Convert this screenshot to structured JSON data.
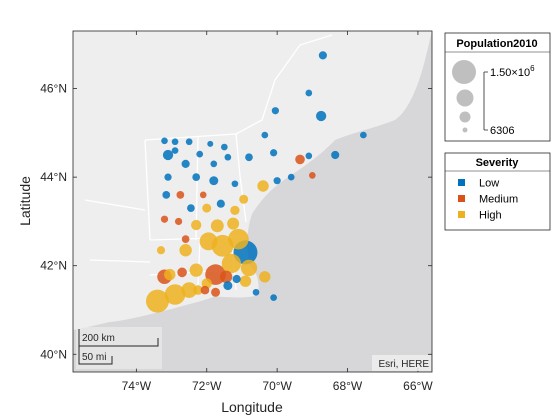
{
  "chart_data": {
    "type": "scatter",
    "map": {
      "basemap_attribution": "Esri, HERE",
      "lon_range": [
        -75.8,
        -65.6
      ],
      "lat_range": [
        39.6,
        47.3
      ],
      "scalebar": {
        "km_label": "200 km",
        "mi_label": "50 mi"
      }
    },
    "xlabel": "Longitude",
    "ylabel": "Latitude",
    "xticks": [
      {
        "value": -74,
        "label": "74°W"
      },
      {
        "value": -72,
        "label": "72°W"
      },
      {
        "value": -70,
        "label": "70°W"
      },
      {
        "value": -68,
        "label": "68°W"
      },
      {
        "value": -66,
        "label": "66°W"
      }
    ],
    "yticks": [
      {
        "value": 40,
        "label": "40°N"
      },
      {
        "value": 42,
        "label": "42°N"
      },
      {
        "value": 44,
        "label": "44°N"
      },
      {
        "value": 46,
        "label": "46°N"
      }
    ],
    "size_legend": {
      "title": "Population2010",
      "max_label": "1.50×10",
      "max_exponent": "6",
      "min_label": "6306"
    },
    "color_legend": {
      "title": "Severity",
      "entries": [
        {
          "name": "Low",
          "color": "#0072BD"
        },
        {
          "name": "Medium",
          "color": "#D95319"
        },
        {
          "name": "High",
          "color": "#EDB120"
        }
      ]
    },
    "points": [
      {
        "lon": -68.7,
        "lat": 46.75,
        "size": 30000,
        "severity": "Low"
      },
      {
        "lon": -69.1,
        "lat": 45.9,
        "size": 15000,
        "severity": "Low"
      },
      {
        "lon": -70.05,
        "lat": 45.5,
        "size": 20000,
        "severity": "Low"
      },
      {
        "lon": -68.75,
        "lat": 45.38,
        "size": 60000,
        "severity": "Low"
      },
      {
        "lon": -70.35,
        "lat": 44.95,
        "size": 15000,
        "severity": "Low"
      },
      {
        "lon": -67.55,
        "lat": 44.95,
        "size": 15000,
        "severity": "Low"
      },
      {
        "lon": -69.35,
        "lat": 44.4,
        "size": 50000,
        "severity": "Medium"
      },
      {
        "lon": -70.1,
        "lat": 44.55,
        "size": 20000,
        "severity": "Low"
      },
      {
        "lon": -68.35,
        "lat": 44.5,
        "size": 30000,
        "severity": "Low"
      },
      {
        "lon": -69.1,
        "lat": 44.48,
        "size": 15000,
        "severity": "Low"
      },
      {
        "lon": -69.0,
        "lat": 44.04,
        "size": 15000,
        "severity": "Medium"
      },
      {
        "lon": -69.6,
        "lat": 44.0,
        "size": 15000,
        "severity": "Low"
      },
      {
        "lon": -70.0,
        "lat": 43.92,
        "size": 20000,
        "severity": "Low"
      },
      {
        "lon": -70.4,
        "lat": 43.8,
        "size": 80000,
        "severity": "High"
      },
      {
        "lon": -70.8,
        "lat": 44.45,
        "size": 25000,
        "severity": "Low"
      },
      {
        "lon": -71.5,
        "lat": 44.68,
        "size": 15000,
        "severity": "Low"
      },
      {
        "lon": -71.9,
        "lat": 44.75,
        "size": 10000,
        "severity": "Low"
      },
      {
        "lon": -72.5,
        "lat": 44.8,
        "size": 15000,
        "severity": "Low"
      },
      {
        "lon": -72.9,
        "lat": 44.8,
        "size": 15000,
        "severity": "Low"
      },
      {
        "lon": -73.2,
        "lat": 44.82,
        "size": 15000,
        "severity": "Low"
      },
      {
        "lon": -72.9,
        "lat": 44.6,
        "size": 15000,
        "severity": "Low"
      },
      {
        "lon": -72.2,
        "lat": 44.52,
        "size": 15000,
        "severity": "Low"
      },
      {
        "lon": -73.1,
        "lat": 44.5,
        "size": 60000,
        "severity": "Low"
      },
      {
        "lon": -71.4,
        "lat": 44.45,
        "size": 15000,
        "severity": "Low"
      },
      {
        "lon": -72.6,
        "lat": 44.3,
        "size": 30000,
        "severity": "Low"
      },
      {
        "lon": -71.8,
        "lat": 44.3,
        "size": 15000,
        "severity": "Low"
      },
      {
        "lon": -73.1,
        "lat": 44.0,
        "size": 20000,
        "severity": "Low"
      },
      {
        "lon": -72.3,
        "lat": 44.0,
        "size": 25000,
        "severity": "Low"
      },
      {
        "lon": -71.8,
        "lat": 43.92,
        "size": 40000,
        "severity": "Low"
      },
      {
        "lon": -71.2,
        "lat": 43.85,
        "size": 15000,
        "severity": "Low"
      },
      {
        "lon": -72.1,
        "lat": 43.6,
        "size": 15000,
        "severity": "Medium"
      },
      {
        "lon": -72.75,
        "lat": 43.6,
        "size": 25000,
        "severity": "Medium"
      },
      {
        "lon": -73.15,
        "lat": 43.6,
        "size": 25000,
        "severity": "Low"
      },
      {
        "lon": -71.6,
        "lat": 43.4,
        "size": 30000,
        "severity": "Low"
      },
      {
        "lon": -72.0,
        "lat": 43.3,
        "size": 40000,
        "severity": "High"
      },
      {
        "lon": -72.45,
        "lat": 43.3,
        "size": 25000,
        "severity": "Low"
      },
      {
        "lon": -70.95,
        "lat": 43.5,
        "size": 40000,
        "severity": "High"
      },
      {
        "lon": -71.2,
        "lat": 43.25,
        "size": 45000,
        "severity": "High"
      },
      {
        "lon": -73.2,
        "lat": 43.05,
        "size": 20000,
        "severity": "Medium"
      },
      {
        "lon": -72.8,
        "lat": 43.0,
        "size": 20000,
        "severity": "Medium"
      },
      {
        "lon": -72.3,
        "lat": 42.92,
        "size": 60000,
        "severity": "High"
      },
      {
        "lon": -71.7,
        "lat": 42.9,
        "size": 110000,
        "severity": "High"
      },
      {
        "lon": -71.25,
        "lat": 42.95,
        "size": 90000,
        "severity": "High"
      },
      {
        "lon": -72.6,
        "lat": 42.6,
        "size": 25000,
        "severity": "Medium"
      },
      {
        "lon": -73.3,
        "lat": 42.35,
        "size": 30000,
        "severity": "High"
      },
      {
        "lon": -72.6,
        "lat": 42.35,
        "size": 100000,
        "severity": "High"
      },
      {
        "lon": -71.95,
        "lat": 42.55,
        "size": 250000,
        "severity": "High"
      },
      {
        "lon": -71.55,
        "lat": 42.45,
        "size": 400000,
        "severity": "High"
      },
      {
        "lon": -71.1,
        "lat": 42.6,
        "size": 350000,
        "severity": "High"
      },
      {
        "lon": -70.9,
        "lat": 42.3,
        "size": 500000,
        "severity": "Low"
      },
      {
        "lon": -71.3,
        "lat": 42.05,
        "size": 300000,
        "severity": "High"
      },
      {
        "lon": -70.8,
        "lat": 41.95,
        "size": 200000,
        "severity": "High"
      },
      {
        "lon": -71.75,
        "lat": 41.8,
        "size": 350000,
        "severity": "Medium"
      },
      {
        "lon": -72.3,
        "lat": 41.9,
        "size": 120000,
        "severity": "High"
      },
      {
        "lon": -72.7,
        "lat": 41.85,
        "size": 50000,
        "severity": "Medium"
      },
      {
        "lon": -73.05,
        "lat": 41.8,
        "size": 80000,
        "severity": "High"
      },
      {
        "lon": -72.0,
        "lat": 41.6,
        "size": 60000,
        "severity": "High"
      },
      {
        "lon": -72.5,
        "lat": 41.45,
        "size": 180000,
        "severity": "High"
      },
      {
        "lon": -73.2,
        "lat": 41.75,
        "size": 150000,
        "severity": "Medium"
      },
      {
        "lon": -71.45,
        "lat": 41.75,
        "size": 100000,
        "severity": "Medium"
      },
      {
        "lon": -71.15,
        "lat": 41.7,
        "size": 30000,
        "severity": "Low"
      },
      {
        "lon": -71.4,
        "lat": 41.55,
        "size": 40000,
        "severity": "Low"
      },
      {
        "lon": -70.9,
        "lat": 41.65,
        "size": 80000,
        "severity": "High"
      },
      {
        "lon": -70.35,
        "lat": 41.75,
        "size": 80000,
        "severity": "High"
      },
      {
        "lon": -72.05,
        "lat": 41.45,
        "size": 35000,
        "severity": "Medium"
      },
      {
        "lon": -71.75,
        "lat": 41.4,
        "size": 40000,
        "severity": "Medium"
      },
      {
        "lon": -72.9,
        "lat": 41.35,
        "size": 350000,
        "severity": "High"
      },
      {
        "lon": -73.4,
        "lat": 41.2,
        "size": 450000,
        "severity": "High"
      },
      {
        "lon": -72.25,
        "lat": 41.45,
        "size": 50000,
        "severity": "High"
      },
      {
        "lon": -70.6,
        "lat": 41.4,
        "size": 15000,
        "severity": "Low"
      },
      {
        "lon": -70.1,
        "lat": 41.28,
        "size": 15000,
        "severity": "Low"
      }
    ]
  }
}
